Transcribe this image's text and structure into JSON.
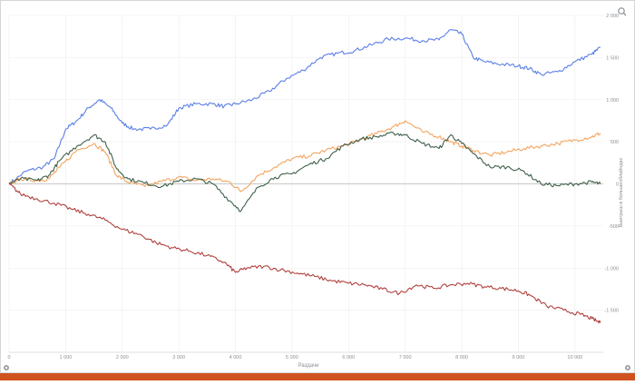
{
  "chart_data": {
    "type": "line",
    "xlabel": "Раздачи",
    "ylabel": "Выигрыш в большихблайндах",
    "xlim": [
      0,
      10500
    ],
    "ylim": [
      -2000,
      2000
    ],
    "x_ticks": [
      0,
      1000,
      2000,
      3000,
      4000,
      5000,
      6000,
      7000,
      8000,
      9000,
      10000
    ],
    "x_tick_labels": [
      "0",
      "1 000",
      "2 000",
      "3 000",
      "4 000",
      "5 000",
      "6 000",
      "7 000",
      "8 000",
      "9 000",
      "10 000"
    ],
    "y_ticks": [
      2000,
      1500,
      1000,
      500,
      0,
      -500,
      -1000,
      -1500
    ],
    "y_tick_labels": [
      "2 000",
      "1 500",
      "1 000",
      "500",
      "0",
      "-500",
      "-1 000",
      "-1 500"
    ],
    "grid": true,
    "legend": "none",
    "series": [
      {
        "color": "#5b7fe6",
        "x": [
          0,
          300,
          600,
          800,
          1000,
          1200,
          1400,
          1600,
          1800,
          2000,
          2200,
          2500,
          2800,
          3000,
          3300,
          3600,
          3800,
          4000,
          4300,
          4600,
          4900,
          5200,
          5500,
          5800,
          6100,
          6400,
          6700,
          7000,
          7300,
          7600,
          7800,
          8000,
          8200,
          8400,
          8700,
          9000,
          9200,
          9400,
          9700,
          10000,
          10300,
          10450
        ],
        "y": [
          0,
          150,
          200,
          300,
          650,
          750,
          900,
          1000,
          900,
          720,
          650,
          650,
          700,
          900,
          950,
          950,
          920,
          950,
          1000,
          1100,
          1250,
          1350,
          1500,
          1550,
          1580,
          1650,
          1720,
          1730,
          1700,
          1710,
          1830,
          1780,
          1500,
          1450,
          1420,
          1400,
          1370,
          1300,
          1330,
          1450,
          1540,
          1620
        ]
      },
      {
        "color": "#f4a45e",
        "x": [
          0,
          200,
          500,
          700,
          900,
          1200,
          1500,
          1700,
          1900,
          2100,
          2400,
          2700,
          3000,
          3300,
          3600,
          3900,
          4100,
          4400,
          4700,
          5000,
          5300,
          5600,
          5900,
          6200,
          6500,
          6800,
          7000,
          7300,
          7600,
          7800,
          8000,
          8200,
          8500,
          8800,
          9100,
          9400,
          9700,
          10000,
          10300,
          10450
        ],
        "y": [
          0,
          60,
          40,
          60,
          200,
          400,
          480,
          380,
          100,
          20,
          -30,
          30,
          80,
          40,
          60,
          20,
          -90,
          100,
          200,
          300,
          330,
          400,
          450,
          520,
          600,
          680,
          750,
          620,
          560,
          500,
          450,
          400,
          340,
          380,
          420,
          450,
          480,
          520,
          560,
          600
        ]
      },
      {
        "color": "#40604a",
        "x": [
          0,
          200,
          500,
          700,
          900,
          1200,
          1500,
          1700,
          1900,
          2100,
          2400,
          2700,
          3000,
          3300,
          3600,
          3900,
          4100,
          4400,
          4700,
          5000,
          5300,
          5600,
          5900,
          6200,
          6500,
          6800,
          7000,
          7300,
          7600,
          7800,
          8000,
          8200,
          8500,
          8800,
          9100,
          9400,
          9700,
          10000,
          10300,
          10450
        ],
        "y": [
          0,
          60,
          40,
          100,
          280,
          450,
          580,
          500,
          180,
          60,
          10,
          -30,
          30,
          60,
          0,
          -200,
          -320,
          -40,
          80,
          120,
          230,
          300,
          450,
          530,
          560,
          600,
          580,
          480,
          420,
          580,
          480,
          360,
          200,
          200,
          150,
          0,
          -20,
          0,
          20,
          0
        ]
      },
      {
        "color": "#b0413e",
        "x": [
          0,
          200,
          500,
          800,
          1100,
          1400,
          1700,
          2000,
          2300,
          2600,
          2900,
          3200,
          3500,
          3800,
          4000,
          4200,
          4500,
          4800,
          5100,
          5400,
          5700,
          6000,
          6300,
          6600,
          6900,
          7200,
          7500,
          7800,
          8100,
          8400,
          8700,
          9000,
          9200,
          9500,
          9800,
          10100,
          10300,
          10450
        ],
        "y": [
          0,
          -120,
          -180,
          -230,
          -300,
          -360,
          -430,
          -540,
          -600,
          -700,
          -760,
          -800,
          -850,
          -930,
          -1050,
          -1000,
          -980,
          -1020,
          -1060,
          -1100,
          -1150,
          -1180,
          -1200,
          -1250,
          -1300,
          -1200,
          -1240,
          -1200,
          -1180,
          -1220,
          -1240,
          -1270,
          -1320,
          -1450,
          -1500,
          -1550,
          -1600,
          -1650
        ]
      }
    ]
  },
  "ui": {
    "colors": {
      "plot_background": "#ffffff",
      "grid": "#ececec",
      "zero_line": "#c7c7c7",
      "frame_border": "#d6d6d6",
      "bottom_bar": "#d0531f"
    },
    "icons": [
      "zoom-icon",
      "settings-gear-icon"
    ]
  }
}
